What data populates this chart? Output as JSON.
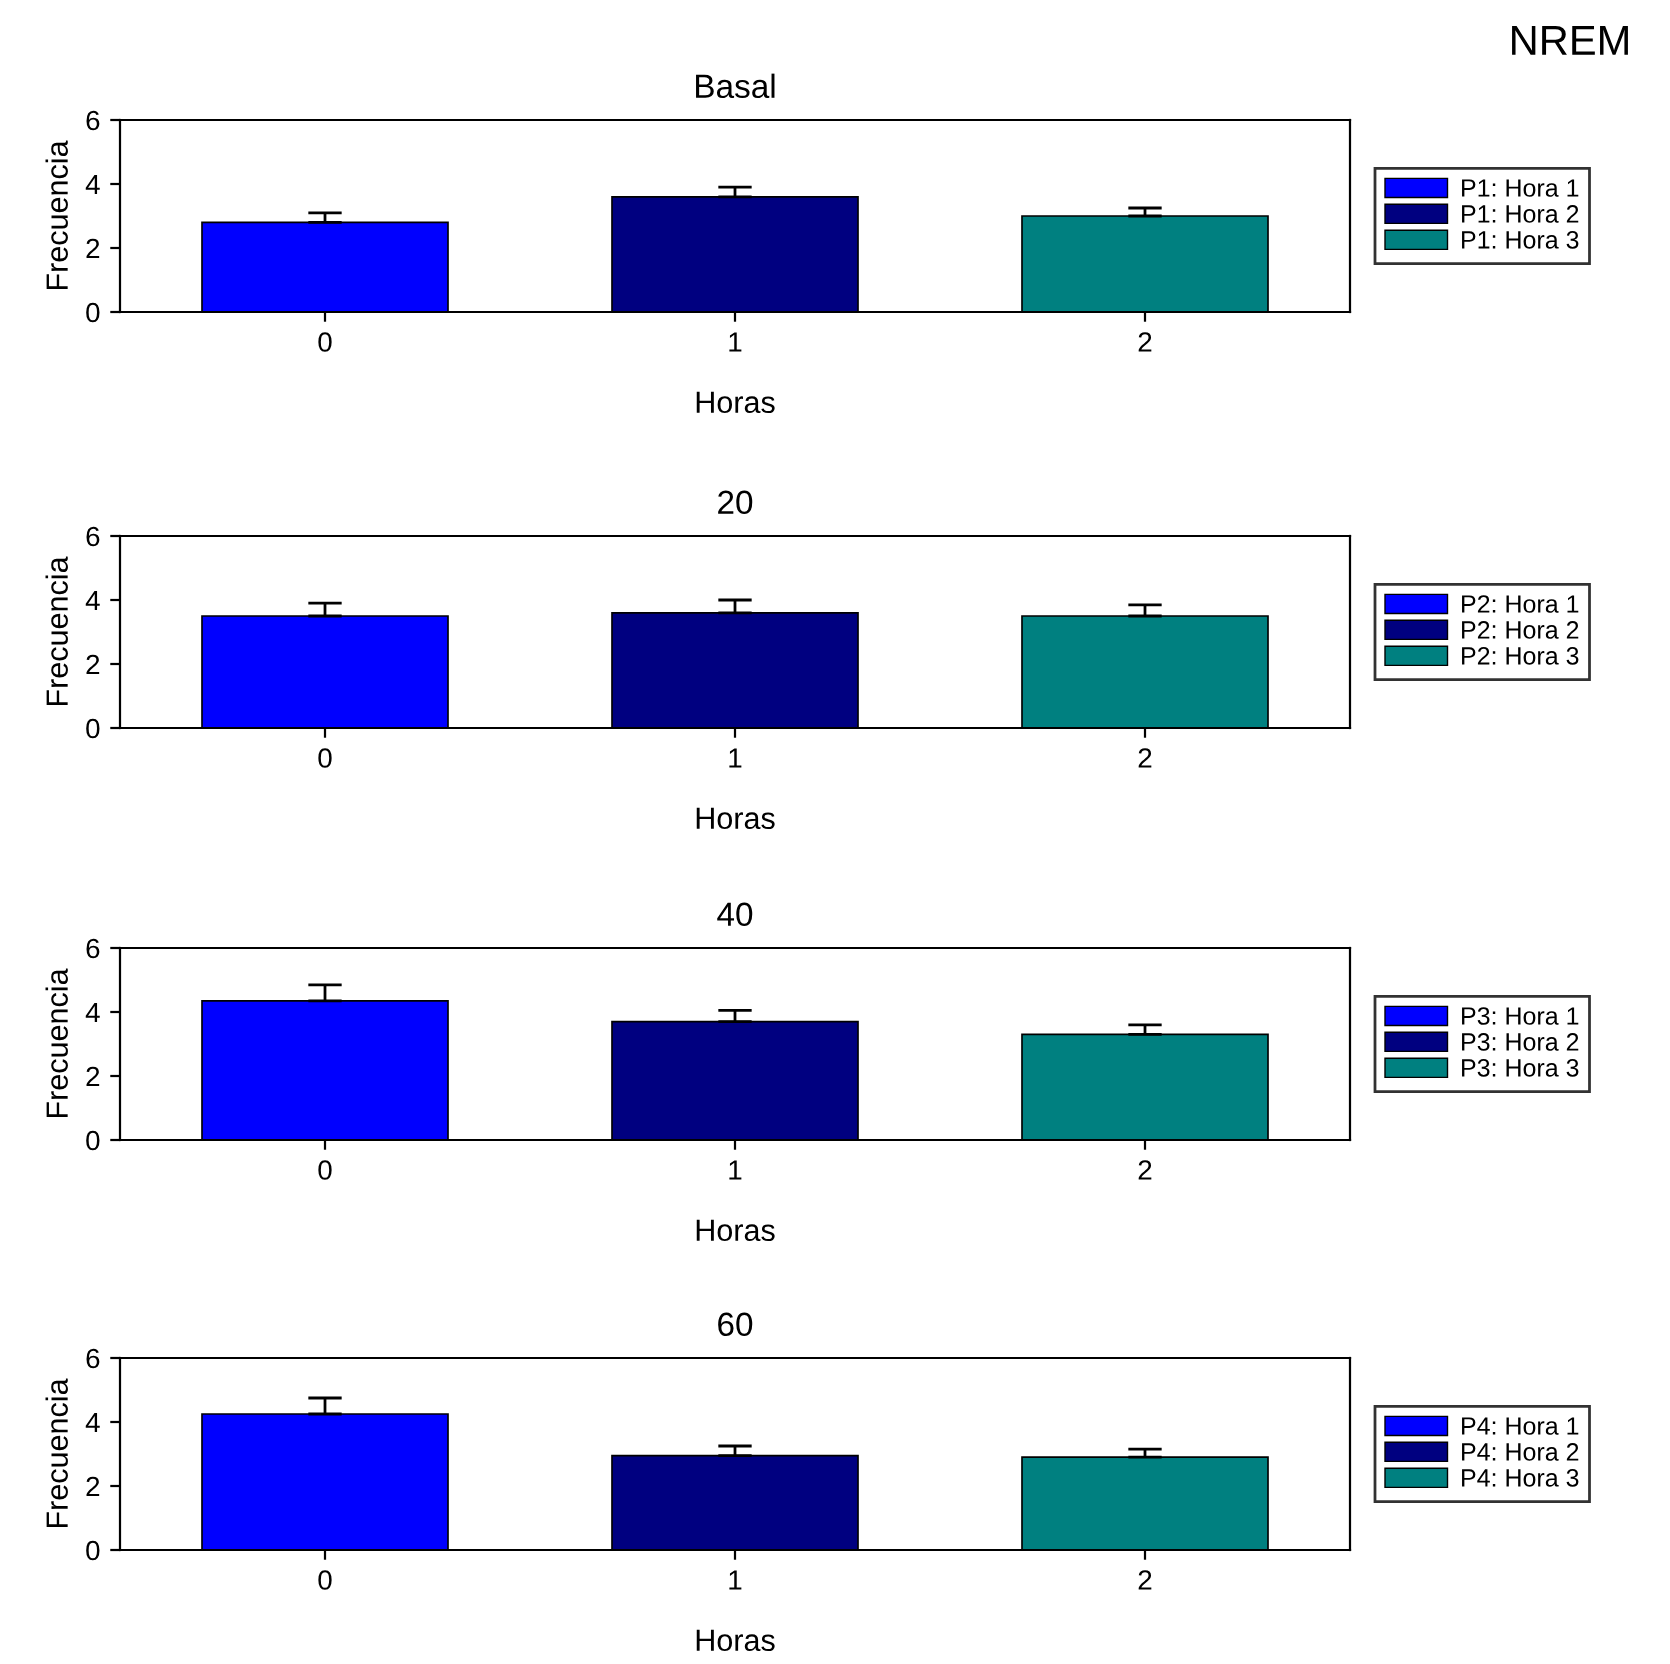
{
  "chart_data": [
    {
      "type": "bar",
      "title": "Basal",
      "xlabel": "Horas",
      "ylabel": "Frecuencia",
      "categories": [
        "0",
        "1",
        "2"
      ],
      "ylim": [
        0,
        6
      ],
      "yticks": [
        0,
        2,
        4,
        6
      ],
      "legend": "right",
      "annotations": [
        "NREM"
      ],
      "series": [
        {
          "name": "P1: Hora 1",
          "color": "#0000ff",
          "values": [
            2.8,
            null,
            null
          ],
          "errors": [
            [
              2.8,
              3.1
            ],
            null,
            null
          ]
        },
        {
          "name": "P1: Hora 2",
          "color": "#000080",
          "values": [
            null,
            3.6,
            null
          ],
          "errors": [
            null,
            [
              3.6,
              3.9
            ],
            null
          ]
        },
        {
          "name": "P1: Hora 3",
          "color": "#008080",
          "values": [
            null,
            null,
            3.0
          ],
          "errors": [
            null,
            null,
            [
              3.0,
              3.25
            ]
          ]
        }
      ]
    },
    {
      "type": "bar",
      "title": "20",
      "xlabel": "Horas",
      "ylabel": "Frecuencia",
      "categories": [
        "0",
        "1",
        "2"
      ],
      "ylim": [
        0,
        6
      ],
      "yticks": [
        0,
        2,
        4,
        6
      ],
      "legend": "right",
      "series": [
        {
          "name": "P2: Hora 1",
          "color": "#0000ff",
          "values": [
            3.5,
            null,
            null
          ],
          "errors": [
            [
              3.5,
              3.9
            ],
            null,
            null
          ]
        },
        {
          "name": "P2: Hora 2",
          "color": "#000080",
          "values": [
            null,
            3.6,
            null
          ],
          "errors": [
            null,
            [
              3.6,
              4.0
            ],
            null
          ]
        },
        {
          "name": "P2: Hora 3",
          "color": "#008080",
          "values": [
            null,
            null,
            3.5
          ],
          "errors": [
            null,
            null,
            [
              3.5,
              3.85
            ]
          ]
        }
      ]
    },
    {
      "type": "bar",
      "title": "40",
      "xlabel": "Horas",
      "ylabel": "Frecuencia",
      "categories": [
        "0",
        "1",
        "2"
      ],
      "ylim": [
        0,
        6
      ],
      "yticks": [
        0,
        2,
        4,
        6
      ],
      "legend": "right",
      "series": [
        {
          "name": "P3: Hora 1",
          "color": "#0000ff",
          "values": [
            4.35,
            null,
            null
          ],
          "errors": [
            [
              4.35,
              4.85
            ],
            null,
            null
          ]
        },
        {
          "name": "P3: Hora 2",
          "color": "#000080",
          "values": [
            null,
            3.7,
            null
          ],
          "errors": [
            null,
            [
              3.7,
              4.05
            ],
            null
          ]
        },
        {
          "name": "P3: Hora 3",
          "color": "#008080",
          "values": [
            null,
            null,
            3.3
          ],
          "errors": [
            null,
            null,
            [
              3.3,
              3.6
            ]
          ]
        }
      ]
    },
    {
      "type": "bar",
      "title": "60",
      "xlabel": "Horas",
      "ylabel": "Frecuencia",
      "categories": [
        "0",
        "1",
        "2"
      ],
      "ylim": [
        0,
        6
      ],
      "yticks": [
        0,
        2,
        4,
        6
      ],
      "legend": "right",
      "series": [
        {
          "name": "P4: Hora 1",
          "color": "#0000ff",
          "values": [
            4.25,
            null,
            null
          ],
          "errors": [
            [
              4.25,
              4.75
            ],
            null,
            null
          ]
        },
        {
          "name": "P4: Hora 2",
          "color": "#000080",
          "values": [
            null,
            2.95,
            null
          ],
          "errors": [
            null,
            [
              2.95,
              3.25
            ],
            null
          ]
        },
        {
          "name": "P4: Hora 3",
          "color": "#008080",
          "values": [
            null,
            null,
            2.9
          ],
          "errors": [
            null,
            null,
            [
              2.9,
              3.15
            ]
          ]
        }
      ]
    }
  ]
}
